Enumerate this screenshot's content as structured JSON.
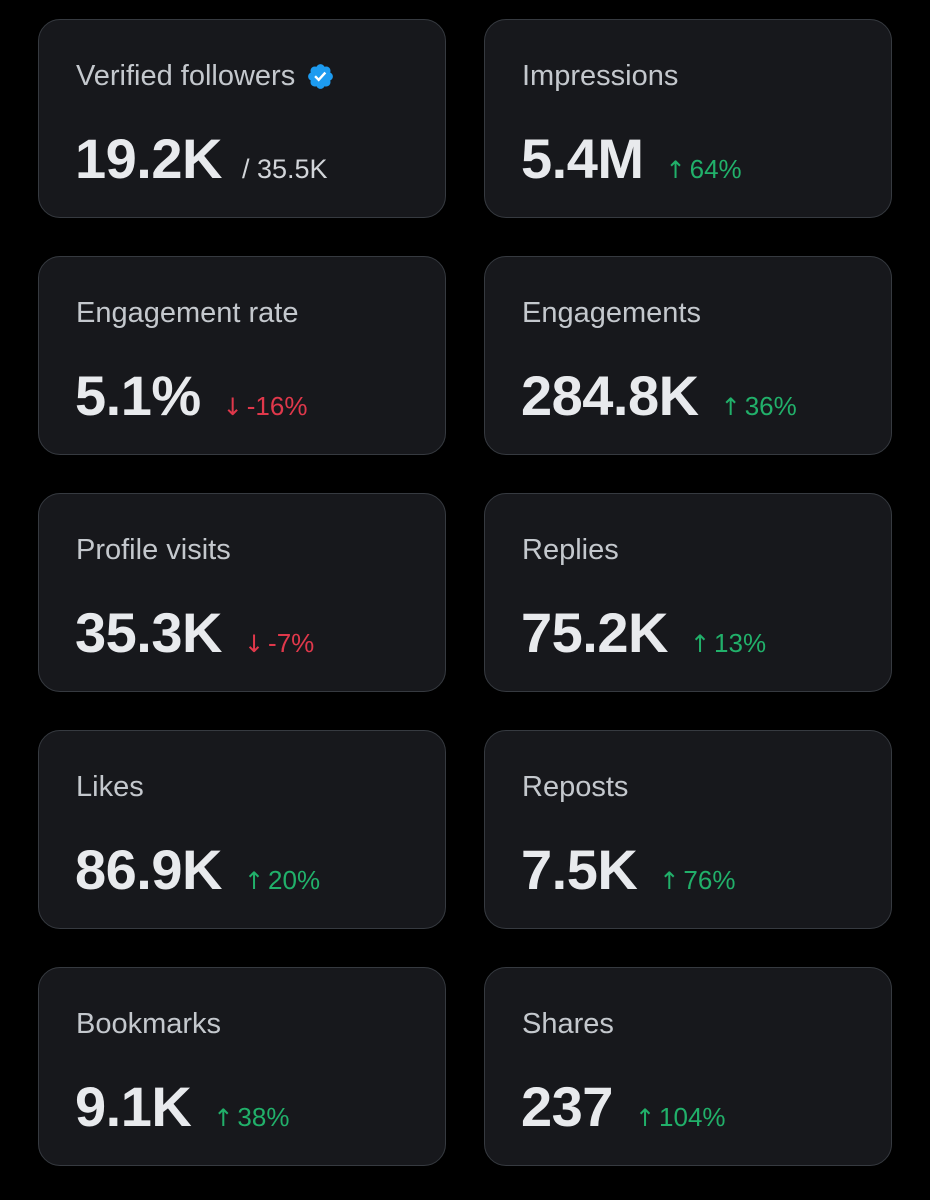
{
  "colors": {
    "background": "#000000",
    "card": "#17181c",
    "card_border": "#363a40",
    "positive": "#21b06a",
    "negative": "#e0384b",
    "verified_badge": "#1d9bf0"
  },
  "cards": [
    {
      "label": "Verified followers",
      "value": "19.2K",
      "suffix": "/ 35.5K",
      "badge_icon": "verified-badge-icon"
    },
    {
      "label": "Impressions",
      "value": "5.4M",
      "delta": "64%",
      "direction": "up",
      "arrow": "↑"
    },
    {
      "label": "Engagement rate",
      "value": "5.1%",
      "delta": "-16%",
      "direction": "down",
      "arrow": "↓"
    },
    {
      "label": "Engagements",
      "value": "284.8K",
      "delta": "36%",
      "direction": "up",
      "arrow": "↑"
    },
    {
      "label": "Profile visits",
      "value": "35.3K",
      "delta": "-7%",
      "direction": "down",
      "arrow": "↓"
    },
    {
      "label": "Replies",
      "value": "75.2K",
      "delta": "13%",
      "direction": "up",
      "arrow": "↑"
    },
    {
      "label": "Likes",
      "value": "86.9K",
      "delta": "20%",
      "direction": "up",
      "arrow": "↑"
    },
    {
      "label": "Reposts",
      "value": "7.5K",
      "delta": "76%",
      "direction": "up",
      "arrow": "↑"
    },
    {
      "label": "Bookmarks",
      "value": "9.1K",
      "delta": "38%",
      "direction": "up",
      "arrow": "↑"
    },
    {
      "label": "Shares",
      "value": "237",
      "delta": "104%",
      "direction": "up",
      "arrow": "↑"
    }
  ]
}
